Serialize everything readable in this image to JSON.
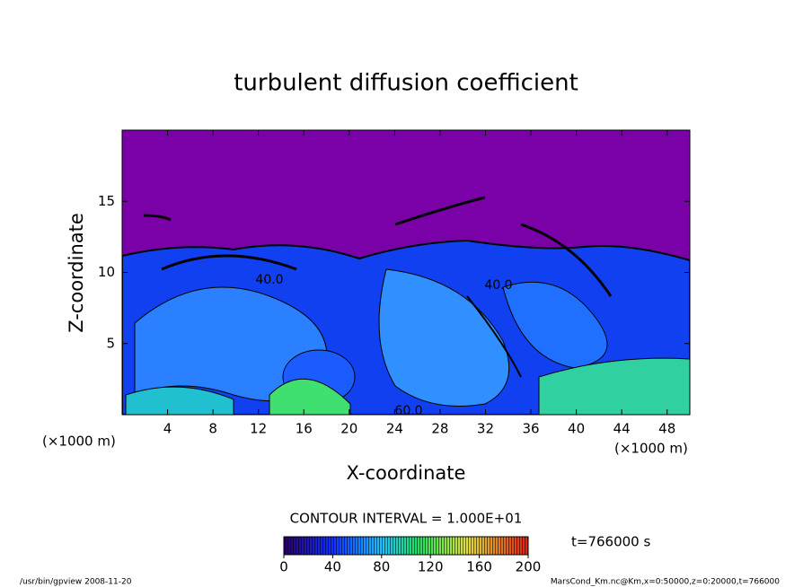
{
  "chart_data": {
    "type": "contour",
    "title": "turbulent diffusion coefficient",
    "x_label": "X-coordinate",
    "y_label": "Z-coordinate",
    "x_unit_label": "(×1000 m)",
    "y_unit_label": "(×1000 m)",
    "xlim": [
      0,
      50
    ],
    "xticks": [
      4,
      8,
      12,
      16,
      20,
      24,
      28,
      32,
      36,
      40,
      44,
      48
    ],
    "ylim": [
      0,
      20
    ],
    "yticks": [
      5,
      10,
      15
    ],
    "contour_interval_label": "CONTOUR INTERVAL = 1.000E+01",
    "contour_labels": [
      {
        "value": 40,
        "label": "40.0"
      },
      {
        "value": 40,
        "label": "40.0"
      },
      {
        "value": 60,
        "label": "60.0"
      }
    ],
    "time_label": "t=766000 s",
    "colorbar": {
      "lim": [
        0,
        200
      ],
      "ticks": [
        0,
        40,
        80,
        120,
        160,
        200
      ]
    },
    "footer_left": "/usr/bin/gpview  2008-11-20",
    "footer_right": "MarsCond_Km.nc@Km,x=0:50000,z=0:20000,t=766000"
  }
}
